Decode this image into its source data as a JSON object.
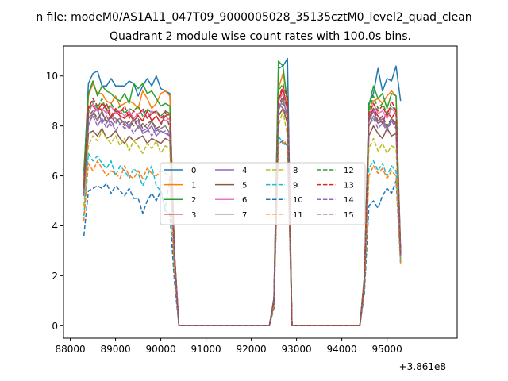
{
  "chart_data": {
    "type": "line",
    "suptitle": "n file: modeM0/AS1A11_047T09_9000005028_35135cztM0_level2_quad_clean",
    "title": "Quadrant 2 module wise count rates with 100.0s bins.",
    "xlabel": "",
    "ylabel": "",
    "x_offset_text": "+3.861e8",
    "xlim": [
      87850,
      96550
    ],
    "ylim": [
      -0.5,
      11.2
    ],
    "xticks": [
      "88000",
      "89000",
      "90000",
      "91000",
      "92000",
      "93000",
      "94000",
      "95000"
    ],
    "xtick_values": [
      88000,
      89000,
      90000,
      91000,
      92000,
      93000,
      94000,
      95000
    ],
    "yticks": [
      "0",
      "2",
      "4",
      "6",
      "8",
      "10"
    ],
    "ytick_values": [
      0,
      2,
      4,
      6,
      8,
      10
    ],
    "grid": false,
    "legend": {
      "placement": "center",
      "columns": 4
    },
    "x": [
      88300,
      88400,
      88500,
      88600,
      88700,
      88800,
      88900,
      89000,
      89100,
      89200,
      89300,
      89400,
      89500,
      89600,
      89700,
      89800,
      89900,
      90000,
      90100,
      90200,
      90300,
      90400,
      90500,
      90600,
      90700,
      90800,
      90900,
      91000,
      91100,
      91200,
      91300,
      91400,
      91500,
      91600,
      91700,
      91800,
      91900,
      92000,
      92100,
      92200,
      92300,
      92400,
      92500,
      92600,
      92700,
      92800,
      92900,
      93000,
      93100,
      93200,
      93300,
      93400,
      93500,
      93600,
      93700,
      93800,
      93900,
      94000,
      94100,
      94200,
      94300,
      94400,
      94500,
      94600,
      94700,
      94800,
      94900,
      95000,
      95100,
      95200,
      95300
    ],
    "series": [
      {
        "name": "0",
        "color": "#1f77b4",
        "dash": "solid",
        "values": [
          6.0,
          9.7,
          10.1,
          10.2,
          9.6,
          9.6,
          9.9,
          9.6,
          9.6,
          9.6,
          9.8,
          9.7,
          9.2,
          9.6,
          9.9,
          9.6,
          10.0,
          9.5,
          9.4,
          9.3,
          3.0,
          0,
          0,
          0,
          0,
          0,
          0,
          0,
          0,
          0,
          0,
          0,
          0,
          0,
          0,
          0,
          0,
          0,
          0,
          0,
          0,
          0,
          1.1,
          10.3,
          10.4,
          10.7,
          0,
          0,
          0,
          0,
          0,
          0,
          0,
          0,
          0,
          0,
          0,
          0,
          0,
          0,
          0,
          0,
          2.0,
          8.9,
          9.3,
          10.3,
          9.4,
          9.9,
          9.8,
          10.4,
          9.0
        ]
      },
      {
        "name": "1",
        "color": "#ff7f0e",
        "dash": "solid",
        "values": [
          5.8,
          9.2,
          9.7,
          9.3,
          9.3,
          9.0,
          8.9,
          9.2,
          8.8,
          8.9,
          9.0,
          8.9,
          8.7,
          9.4,
          9.1,
          8.7,
          8.9,
          9.3,
          9.4,
          9.2,
          3.0,
          0,
          0,
          0,
          0,
          0,
          0,
          0,
          0,
          0,
          0,
          0,
          0,
          0,
          0,
          0,
          0,
          0,
          0,
          0,
          0,
          0,
          1.1,
          9.5,
          10.1,
          9.1,
          0,
          0,
          0,
          0,
          0,
          0,
          0,
          0,
          0,
          0,
          0,
          0,
          0,
          0,
          0,
          0,
          1.8,
          8.7,
          9.0,
          9.1,
          8.9,
          9.2,
          9.4,
          9.2,
          2.5
        ]
      },
      {
        "name": "2",
        "color": "#2ca02c",
        "dash": "solid",
        "values": [
          6.2,
          9.3,
          9.8,
          9.2,
          9.6,
          9.4,
          9.3,
          9.1,
          9.0,
          9.3,
          8.9,
          9.7,
          9.5,
          9.7,
          9.3,
          9.4,
          9.1,
          8.8,
          8.9,
          8.8,
          2.9,
          0,
          0,
          0,
          0,
          0,
          0,
          0,
          0,
          0,
          0,
          0,
          0,
          0,
          0,
          0,
          0,
          0,
          0,
          0,
          0,
          0,
          1.1,
          10.6,
          10.4,
          8.9,
          0,
          0,
          0,
          0,
          0,
          0,
          0,
          0,
          0,
          0,
          0,
          0,
          0,
          0,
          0,
          0,
          1.9,
          8.8,
          9.6,
          9.1,
          9.3,
          8.7,
          9.3,
          9.2,
          3.0
        ]
      },
      {
        "name": "3",
        "color": "#d62728",
        "dash": "solid",
        "values": [
          5.5,
          8.8,
          8.8,
          8.6,
          8.9,
          8.7,
          8.3,
          8.6,
          8.4,
          8.3,
          8.5,
          8.2,
          8.4,
          8.2,
          8.6,
          8.2,
          8.4,
          8.1,
          8.4,
          8.5,
          2.9,
          0,
          0,
          0,
          0,
          0,
          0,
          0,
          0,
          0,
          0,
          0,
          0,
          0,
          0,
          0,
          0,
          0,
          0,
          0,
          0,
          0,
          1.0,
          9.0,
          9.5,
          8.7,
          0,
          0,
          0,
          0,
          0,
          0,
          0,
          0,
          0,
          0,
          0,
          0,
          0,
          0,
          0,
          0,
          1.8,
          8.3,
          8.7,
          8.4,
          8.1,
          8.6,
          8.3,
          8.6,
          3.0
        ]
      },
      {
        "name": "4",
        "color": "#9467bd",
        "dash": "solid",
        "values": [
          5.3,
          8.0,
          8.5,
          8.7,
          8.1,
          8.4,
          8.0,
          8.2,
          8.3,
          8.1,
          7.9,
          8.2,
          8.2,
          7.7,
          7.8,
          8.0,
          7.6,
          7.8,
          7.7,
          7.6,
          2.8,
          0,
          0,
          0,
          0,
          0,
          0,
          0,
          0,
          0,
          0,
          0,
          0,
          0,
          0,
          0,
          0,
          0,
          0,
          0,
          0,
          0,
          1.0,
          8.9,
          8.7,
          8.4,
          0,
          0,
          0,
          0,
          0,
          0,
          0,
          0,
          0,
          0,
          0,
          0,
          0,
          0,
          0,
          0,
          1.7,
          8.2,
          8.6,
          8.1,
          8.3,
          7.9,
          8.2,
          8.1,
          2.9
        ]
      },
      {
        "name": "5",
        "color": "#8c564b",
        "dash": "solid",
        "values": [
          5.2,
          7.7,
          7.8,
          7.6,
          7.9,
          7.5,
          7.6,
          7.8,
          7.5,
          7.3,
          7.6,
          7.4,
          7.5,
          7.6,
          7.3,
          7.5,
          7.4,
          7.3,
          7.5,
          7.4,
          2.7,
          0,
          0,
          0,
          0,
          0,
          0,
          0,
          0,
          0,
          0,
          0,
          0,
          0,
          0,
          0,
          0,
          0,
          0,
          0,
          0,
          0,
          1.0,
          8.4,
          8.7,
          8.1,
          0,
          0,
          0,
          0,
          0,
          0,
          0,
          0,
          0,
          0,
          0,
          0,
          0,
          0,
          0,
          0,
          1.7,
          7.6,
          8.0,
          7.7,
          7.5,
          7.9,
          7.6,
          7.7,
          2.8
        ]
      },
      {
        "name": "6",
        "color": "#e377c2",
        "dash": "solid",
        "values": [
          5.6,
          8.5,
          8.9,
          8.6,
          8.7,
          8.5,
          8.8,
          8.5,
          8.6,
          8.4,
          8.6,
          8.3,
          8.5,
          8.6,
          8.3,
          8.6,
          8.5,
          8.4,
          8.2,
          8.3,
          2.9,
          0,
          0,
          0,
          0,
          0,
          0,
          0,
          0,
          0,
          0,
          0,
          0,
          0,
          0,
          0,
          0,
          0,
          0,
          0,
          0,
          0,
          1.0,
          9.0,
          9.3,
          8.6,
          0,
          0,
          0,
          0,
          0,
          0,
          0,
          0,
          0,
          0,
          0,
          0,
          0,
          0,
          0,
          0,
          1.8,
          8.4,
          8.9,
          8.5,
          8.6,
          8.3,
          8.7,
          8.5,
          2.9
        ]
      },
      {
        "name": "7",
        "color": "#7f7f7f",
        "dash": "solid",
        "values": [
          5.4,
          8.3,
          8.5,
          8.2,
          8.6,
          8.1,
          8.4,
          8.3,
          8.1,
          8.2,
          8.0,
          8.3,
          7.9,
          8.1,
          7.9,
          8.2,
          7.8,
          7.9,
          8.0,
          7.7,
          2.8,
          0,
          0,
          0,
          0,
          0,
          0,
          0,
          0,
          0,
          0,
          0,
          0,
          0,
          0,
          0,
          0,
          0,
          0,
          0,
          0,
          0,
          1.0,
          8.6,
          9.1,
          8.3,
          0,
          0,
          0,
          0,
          0,
          0,
          0,
          0,
          0,
          0,
          0,
          0,
          0,
          0,
          0,
          0,
          1.7,
          8.0,
          8.4,
          8.1,
          8.2,
          7.9,
          8.3,
          8.0,
          2.8
        ]
      },
      {
        "name": "8",
        "color": "#bcbd22",
        "dash": "dashed",
        "values": [
          4.8,
          7.2,
          7.6,
          7.4,
          7.8,
          7.5,
          7.3,
          7.6,
          7.2,
          7.5,
          7.0,
          7.4,
          7.2,
          6.9,
          7.3,
          7.1,
          7.4,
          6.9,
          7.2,
          7.1,
          2.6,
          0,
          0,
          0,
          0,
          0,
          0,
          0,
          0,
          0,
          0,
          0,
          0,
          0,
          0,
          0,
          0,
          0,
          0,
          0,
          0,
          0,
          0.9,
          8.0,
          8.6,
          7.6,
          0,
          0,
          0,
          0,
          0,
          0,
          0,
          0,
          0,
          0,
          0,
          0,
          0,
          0,
          0,
          0,
          1.6,
          7.1,
          7.5,
          7.0,
          7.3,
          6.9,
          7.2,
          7.1,
          2.7
        ]
      },
      {
        "name": "9",
        "color": "#17becf",
        "dash": "dashed",
        "values": [
          4.4,
          6.9,
          6.6,
          6.8,
          6.5,
          6.3,
          6.6,
          6.0,
          6.4,
          6.2,
          5.9,
          6.3,
          6.1,
          5.6,
          6.0,
          6.4,
          5.6,
          5.4,
          4.7,
          5.9,
          2.2,
          0,
          0,
          0,
          0,
          0,
          0,
          0,
          0,
          0,
          0,
          0,
          0,
          0,
          0,
          0,
          0,
          0,
          0,
          0,
          0,
          0,
          0.8,
          7.6,
          7.3,
          7.2,
          0,
          0,
          0,
          0,
          0,
          0,
          0,
          0,
          0,
          0,
          0,
          0,
          0,
          0,
          0,
          0,
          1.5,
          6.3,
          6.6,
          6.2,
          6.5,
          6.0,
          6.4,
          6.2,
          2.6
        ]
      },
      {
        "name": "10",
        "color": "#1f77b4",
        "dash": "dashed",
        "values": [
          3.6,
          5.4,
          5.5,
          5.6,
          5.5,
          5.7,
          5.3,
          5.6,
          5.4,
          5.2,
          5.5,
          5.1,
          5.1,
          4.5,
          5.0,
          5.3,
          5.0,
          5.4,
          4.6,
          4.5,
          1.8,
          0,
          0,
          0,
          0,
          0,
          0,
          0,
          0,
          0,
          0,
          0,
          0,
          0,
          0,
          0,
          0,
          0,
          0,
          0,
          0,
          0,
          0.7,
          7.3,
          7.4,
          7.2,
          0,
          0,
          0,
          0,
          0,
          0,
          0,
          0,
          0,
          0,
          0,
          0,
          0,
          0,
          0,
          0,
          1.3,
          4.8,
          5.0,
          4.7,
          5.2,
          5.5,
          5.3,
          5.8,
          2.5
        ]
      },
      {
        "name": "11",
        "color": "#ff7f0e",
        "dash": "dashed",
        "values": [
          4.2,
          6.5,
          6.2,
          6.6,
          6.3,
          6.0,
          6.2,
          6.1,
          5.9,
          6.4,
          6.0,
          5.9,
          6.2,
          5.9,
          6.3,
          6.1,
          6.0,
          6.2,
          6.1,
          6.0,
          2.2,
          0,
          0,
          0,
          0,
          0,
          0,
          0,
          0,
          0,
          0,
          0,
          0,
          0,
          0,
          0,
          0,
          0,
          0,
          0,
          0,
          0,
          0.8,
          7.3,
          7.3,
          7.4,
          0,
          0,
          0,
          0,
          0,
          0,
          0,
          0,
          0,
          0,
          0,
          0,
          0,
          0,
          0,
          0,
          1.5,
          6.0,
          6.4,
          6.1,
          6.3,
          5.9,
          6.2,
          6.0,
          2.5
        ]
      },
      {
        "name": "12",
        "color": "#2ca02c",
        "dash": "dashed",
        "values": [
          5.7,
          8.6,
          9.0,
          8.7,
          9.1,
          8.6,
          8.9,
          8.6,
          8.8,
          8.5,
          8.7,
          8.6,
          8.8,
          8.4,
          8.7,
          8.5,
          8.6,
          8.4,
          8.6,
          8.5,
          2.9,
          0,
          0,
          0,
          0,
          0,
          0,
          0,
          0,
          0,
          0,
          0,
          0,
          0,
          0,
          0,
          0,
          0,
          0,
          0,
          0,
          0,
          1.0,
          9.4,
          9.7,
          9.0,
          0,
          0,
          0,
          0,
          0,
          0,
          0,
          0,
          0,
          0,
          0,
          0,
          0,
          0,
          0,
          0,
          1.8,
          8.6,
          9.2,
          8.7,
          8.9,
          8.5,
          8.8,
          8.6,
          2.9
        ]
      },
      {
        "name": "13",
        "color": "#d62728",
        "dash": "dashed",
        "values": [
          5.6,
          8.7,
          9.1,
          8.8,
          8.6,
          8.9,
          8.4,
          8.7,
          8.5,
          8.8,
          8.3,
          8.6,
          8.4,
          8.7,
          8.3,
          8.5,
          8.6,
          8.3,
          8.5,
          8.4,
          2.9,
          0,
          0,
          0,
          0,
          0,
          0,
          0,
          0,
          0,
          0,
          0,
          0,
          0,
          0,
          0,
          0,
          0,
          0,
          0,
          0,
          0,
          1.0,
          9.1,
          9.6,
          9.2,
          0,
          0,
          0,
          0,
          0,
          0,
          0,
          0,
          0,
          0,
          0,
          0,
          0,
          0,
          0,
          0,
          1.8,
          8.5,
          8.9,
          8.6,
          8.8,
          8.4,
          9.0,
          8.6,
          2.9
        ]
      },
      {
        "name": "14",
        "color": "#9467bd",
        "dash": "dashed",
        "values": [
          5.2,
          8.1,
          8.4,
          8.0,
          8.3,
          7.9,
          8.2,
          7.8,
          8.1,
          7.9,
          8.0,
          7.7,
          8.0,
          7.8,
          7.9,
          7.6,
          7.9,
          7.7,
          7.8,
          7.6,
          2.8,
          0,
          0,
          0,
          0,
          0,
          0,
          0,
          0,
          0,
          0,
          0,
          0,
          0,
          0,
          0,
          0,
          0,
          0,
          0,
          0,
          0,
          1.0,
          8.7,
          8.9,
          8.5,
          0,
          0,
          0,
          0,
          0,
          0,
          0,
          0,
          0,
          0,
          0,
          0,
          0,
          0,
          0,
          0,
          1.7,
          8.0,
          8.3,
          7.9,
          8.1,
          7.8,
          8.2,
          7.9,
          2.8
        ]
      },
      {
        "name": "15",
        "color": "#8c564b",
        "dash": "dashed",
        "values": [
          5.5,
          8.4,
          8.6,
          8.3,
          8.5,
          8.2,
          8.4,
          8.1,
          8.3,
          8.0,
          8.2,
          8.0,
          8.3,
          7.9,
          8.1,
          8.2,
          7.9,
          8.0,
          8.6,
          7.9,
          2.8,
          0,
          0,
          0,
          0,
          0,
          0,
          0,
          0,
          0,
          0,
          0,
          0,
          0,
          0,
          0,
          0,
          0,
          0,
          0,
          0,
          0,
          1.0,
          8.8,
          9.2,
          8.7,
          0,
          0,
          0,
          0,
          0,
          0,
          0,
          0,
          0,
          0,
          0,
          0,
          0,
          0,
          0,
          0,
          1.7,
          8.3,
          8.7,
          8.2,
          8.4,
          8.0,
          8.3,
          8.1,
          2.8
        ]
      }
    ]
  }
}
